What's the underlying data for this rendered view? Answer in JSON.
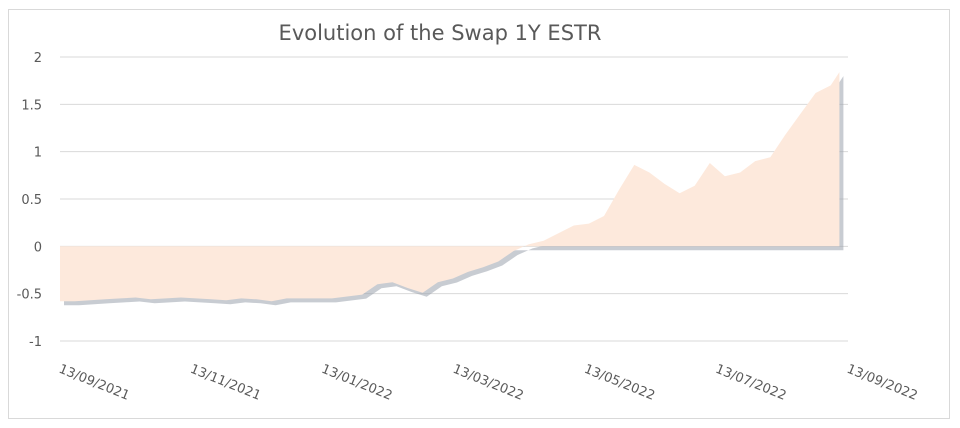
{
  "chart_data": {
    "type": "area",
    "title": "Evolution of the Swap 1Y ESTR",
    "xlabel": "",
    "ylabel": "",
    "ylim": [
      -1,
      2
    ],
    "yticks": [
      "2",
      "1.5",
      "1",
      "0.5",
      "0",
      "-0.5",
      "-1"
    ],
    "xlim": [
      "2021-09-13",
      "2022-09-13"
    ],
    "xticks": [
      "13/09/2021",
      "13/11/2021",
      "13/01/2022",
      "13/03/2022",
      "13/05/2022",
      "13/07/2022",
      "13/09/2022"
    ],
    "grid": true,
    "legend": "none",
    "fill_color": "#fde9dc",
    "series": [
      {
        "x": [
          "2021-09-13",
          "2021-09-20",
          "2021-09-27",
          "2021-10-04",
          "2021-10-11",
          "2021-10-18",
          "2021-10-25",
          "2021-11-01",
          "2021-11-08",
          "2021-11-15",
          "2021-11-22",
          "2021-11-29",
          "2021-12-06",
          "2021-12-13",
          "2021-12-20",
          "2021-12-27",
          "2022-01-03",
          "2022-01-10",
          "2022-01-17",
          "2022-01-24",
          "2022-01-31",
          "2022-02-07",
          "2022-02-14",
          "2022-02-21",
          "2022-02-28",
          "2022-03-07",
          "2022-03-14",
          "2022-03-21",
          "2022-03-28",
          "2022-04-04",
          "2022-04-11",
          "2022-04-18",
          "2022-04-25",
          "2022-05-02",
          "2022-05-09",
          "2022-05-16",
          "2022-05-23",
          "2022-05-30",
          "2022-06-06",
          "2022-06-13",
          "2022-06-20",
          "2022-06-27",
          "2022-07-04",
          "2022-07-11",
          "2022-07-18",
          "2022-07-25",
          "2022-08-01",
          "2022-08-08",
          "2022-08-15",
          "2022-08-22",
          "2022-08-29",
          "2022-09-05",
          "2022-09-09"
        ],
        "values": [
          -0.58,
          -0.58,
          -0.57,
          -0.56,
          -0.55,
          -0.54,
          -0.56,
          -0.55,
          -0.54,
          -0.55,
          -0.56,
          -0.57,
          -0.55,
          -0.56,
          -0.58,
          -0.55,
          -0.55,
          -0.55,
          -0.55,
          -0.53,
          -0.51,
          -0.4,
          -0.38,
          -0.44,
          -0.49,
          -0.38,
          -0.34,
          -0.27,
          -0.22,
          -0.16,
          -0.05,
          0.02,
          0.06,
          0.14,
          0.22,
          0.24,
          0.32,
          0.6,
          0.86,
          0.78,
          0.66,
          0.56,
          0.64,
          0.88,
          0.74,
          0.78,
          0.9,
          0.94,
          1.18,
          1.4,
          1.62,
          1.7,
          1.84
        ]
      }
    ]
  }
}
